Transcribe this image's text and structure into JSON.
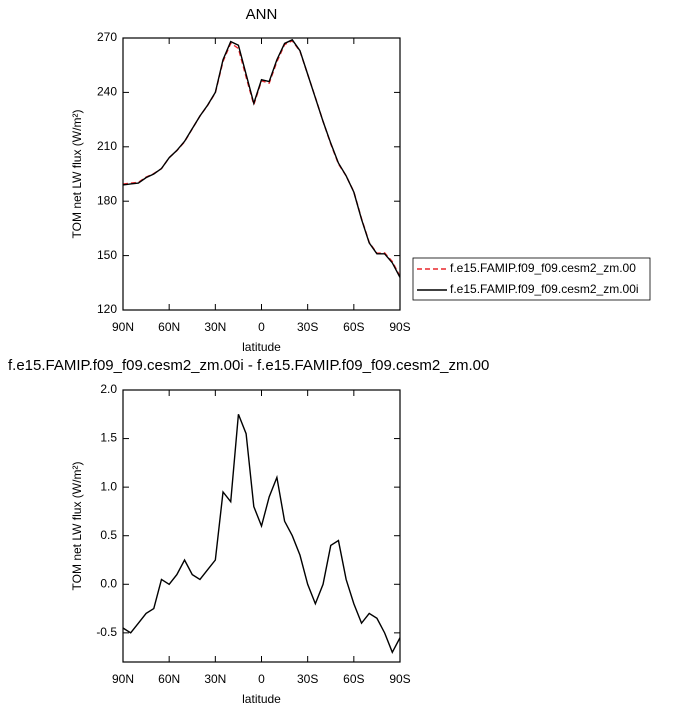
{
  "chart_data": [
    {
      "type": "line",
      "title": "ANN",
      "xlabel": "latitude",
      "ylabel": "TOM net LW flux (W/m²)",
      "x": [
        90,
        85,
        80,
        75,
        70,
        65,
        60,
        55,
        50,
        45,
        40,
        35,
        30,
        25,
        20,
        15,
        10,
        5,
        0,
        -5,
        -10,
        -15,
        -20,
        -25,
        -30,
        -35,
        -40,
        -45,
        -50,
        -55,
        -60,
        -65,
        -70,
        -75,
        -80,
        -85,
        -90
      ],
      "series": [
        {
          "name": "f.e15.FAMIP.f09_f09.cesm2_zm.00",
          "color": "#e8262b",
          "line_style": "dashed",
          "values": [
            189.45,
            190,
            190.4,
            193.3,
            195.25,
            197.95,
            204,
            207.9,
            212.75,
            219.9,
            226.95,
            232.85,
            239.75,
            257.05,
            267.15,
            264.25,
            248.45,
            233.2,
            246.4,
            245.1,
            256.9,
            266.35,
            268.5,
            262.7,
            250,
            237.2,
            224,
            211.6,
            200.55,
            193.95,
            185.2,
            170.4,
            157.3,
            151.35,
            151.5,
            146.7,
            138.55
          ]
        },
        {
          "name": "f.e15.FAMIP.f09_f09.cesm2_zm.00i",
          "color": "#000000",
          "line_style": "solid",
          "values": [
            189,
            189.5,
            190,
            193,
            195,
            198,
            204,
            208,
            213,
            220,
            227,
            233,
            240,
            258,
            268,
            266,
            250,
            234,
            247,
            246,
            258,
            267,
            269,
            263,
            250,
            237,
            224,
            212,
            201,
            194,
            185,
            170,
            157,
            151,
            151,
            146,
            138
          ]
        }
      ],
      "xlim": [
        90,
        -90
      ],
      "xticks": [
        {
          "value": 90,
          "label": "90N"
        },
        {
          "value": 60,
          "label": "60N"
        },
        {
          "value": 30,
          "label": "30N"
        },
        0,
        {
          "value": -30,
          "label": "30S"
        },
        {
          "value": -60,
          "label": "60S"
        },
        {
          "value": -90,
          "label": "90S"
        }
      ],
      "ylim": [
        120,
        270
      ],
      "yticks": [
        120,
        150,
        180,
        210,
        240,
        270
      ],
      "legend": "right"
    },
    {
      "type": "line",
      "title": "f.e15.FAMIP.f09_f09.cesm2_zm.00i - f.e15.FAMIP.f09_f09.cesm2_zm.00",
      "xlabel": "latitude",
      "ylabel": "TOM net LW flux (W/m²)",
      "x": [
        90,
        85,
        80,
        75,
        70,
        65,
        60,
        55,
        50,
        45,
        40,
        35,
        30,
        25,
        20,
        15,
        10,
        5,
        0,
        -5,
        -10,
        -15,
        -20,
        -25,
        -30,
        -35,
        -40,
        -45,
        -50,
        -55,
        -60,
        -65,
        -70,
        -75,
        -80,
        -85,
        -90
      ],
      "values": [
        -0.45,
        -0.5,
        -0.4,
        -0.3,
        -0.25,
        0.05,
        0.0,
        0.1,
        0.25,
        0.1,
        0.05,
        0.15,
        0.25,
        0.95,
        0.85,
        1.75,
        1.55,
        0.8,
        0.6,
        0.9,
        1.1,
        0.65,
        0.5,
        0.3,
        0.0,
        -0.2,
        0.0,
        0.4,
        0.45,
        0.05,
        -0.2,
        -0.4,
        -0.3,
        -0.35,
        -0.5,
        -0.7,
        -0.55
      ],
      "color": "#000000",
      "xlim": [
        90,
        -90
      ],
      "xticks": [
        {
          "value": 90,
          "label": "90N"
        },
        {
          "value": 60,
          "label": "60N"
        },
        {
          "value": 30,
          "label": "30N"
        },
        0,
        {
          "value": -30,
          "label": "30S"
        },
        {
          "value": -60,
          "label": "60S"
        },
        {
          "value": -90,
          "label": "90S"
        }
      ],
      "ylim": [
        -0.8,
        2.0
      ],
      "yticks": [
        {
          "value": -0.5,
          "label": "-0.5"
        },
        {
          "value": 0,
          "label": "0.0"
        },
        {
          "value": 0.5,
          "label": "0.5"
        },
        {
          "value": 1,
          "label": "1.0"
        },
        {
          "value": 1.5,
          "label": "1.5"
        },
        {
          "value": 2,
          "label": "2.0"
        }
      ]
    }
  ]
}
